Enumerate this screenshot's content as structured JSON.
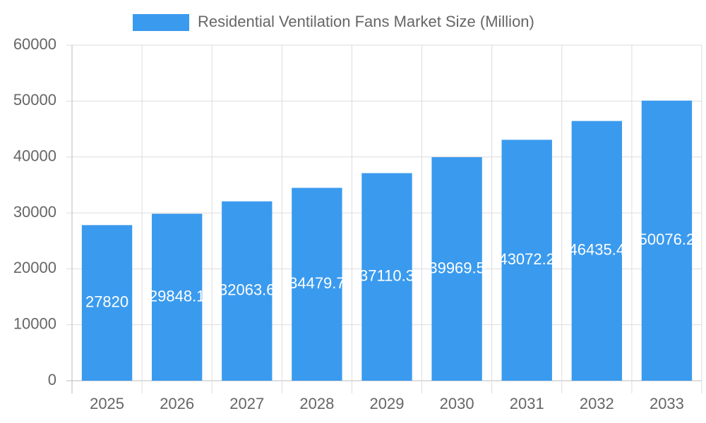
{
  "chart_data": {
    "type": "bar",
    "categories": [
      "2025",
      "2026",
      "2027",
      "2028",
      "2029",
      "2030",
      "2031",
      "2032",
      "2033"
    ],
    "series": [
      {
        "name": "Residential Ventilation Fans Market Size (Million)",
        "color": "#3a9aee",
        "values": [
          27820,
          29848.1,
          32063.6,
          34479.7,
          37110.3,
          39969.5,
          43072.2,
          46435.4,
          50076.2
        ]
      }
    ],
    "ylim": [
      0,
      60000
    ],
    "yticks": [
      0,
      10000,
      20000,
      30000,
      40000,
      50000,
      60000
    ],
    "grid": true,
    "legend": "top"
  }
}
